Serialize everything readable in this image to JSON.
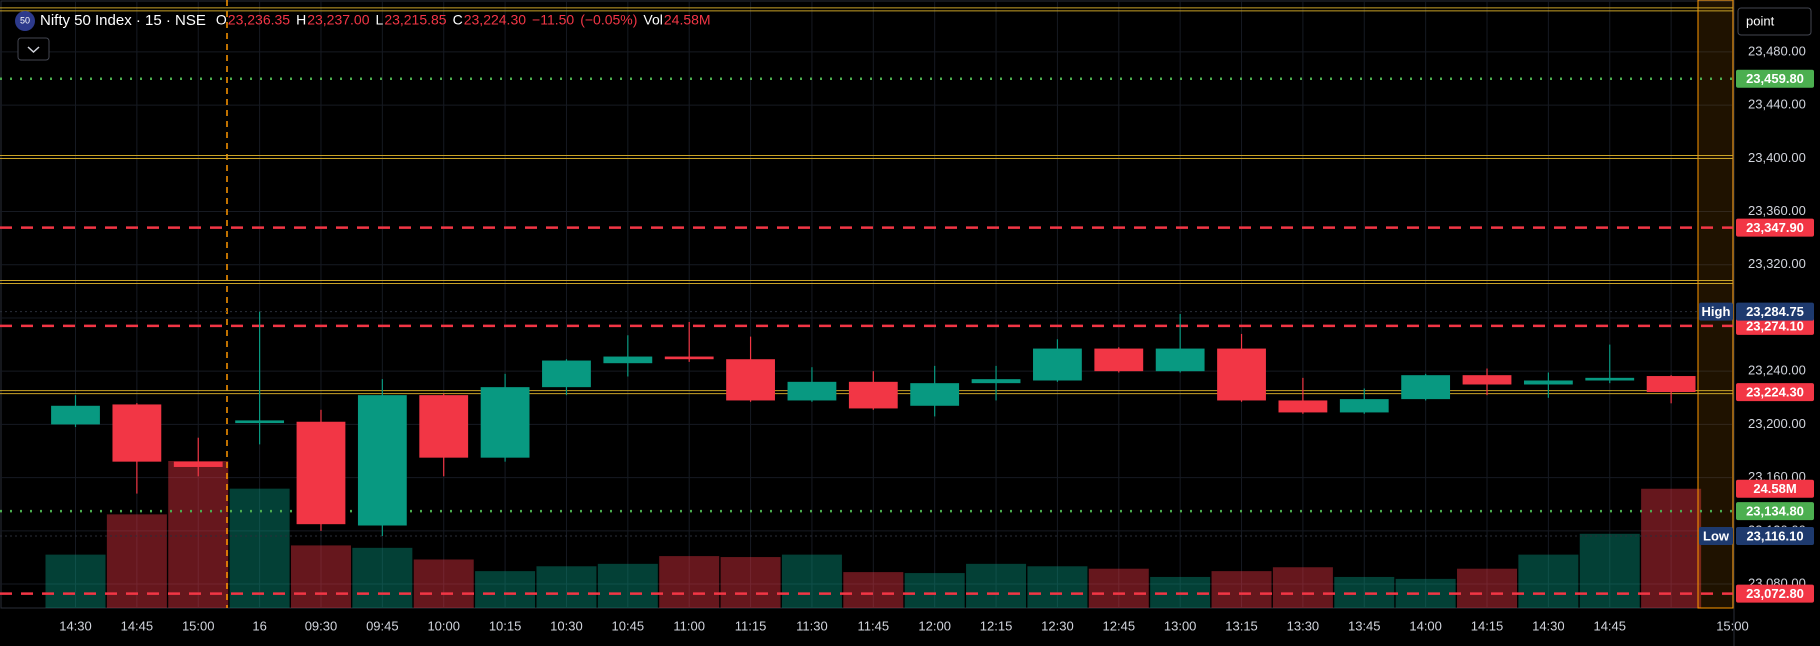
{
  "chart_data": {
    "type": "candlestick",
    "header": {
      "badge": "50",
      "symbol": "Nifty 50 Index · 15 · NSE",
      "items": [
        {
          "key": "O",
          "value": 23236.35,
          "label": "23,236.35"
        },
        {
          "key": "H",
          "value": 23237.0,
          "label": "23,237.00"
        },
        {
          "key": "L",
          "value": 23215.85,
          "label": "23,215.85"
        },
        {
          "key": "C",
          "value": 23224.3,
          "label": "23,224.30"
        },
        {
          "value": -11.5,
          "label": "−11.50"
        },
        {
          "value": -0.05,
          "label": "(−0.05%)"
        },
        {
          "key": "Vol",
          "value": 24.58,
          "label": "24.58M"
        }
      ]
    },
    "unit_selector": "point",
    "categories": [
      "14:30",
      "14:45",
      "15:00",
      "16",
      "09:30",
      "09:45",
      "10:00",
      "10:15",
      "10:30",
      "10:45",
      "11:00",
      "11:15",
      "11:30",
      "11:45",
      "12:00",
      "12:15",
      "12:30",
      "12:45",
      "13:00",
      "13:15",
      "13:30",
      "13:45",
      "14:00",
      "14:15",
      "14:30",
      "14:45",
      null,
      "15:00"
    ],
    "open": [
      23200,
      23215,
      23172,
      23201,
      23202,
      23124,
      23222,
      23175,
      23228,
      23246,
      23251,
      23249,
      23218,
      23232,
      23214,
      23231,
      23233,
      23257,
      23240,
      23257,
      23218,
      23209,
      23219,
      23237,
      23230,
      23233,
      23236.35,
      null
    ],
    "high": [
      23222,
      23216,
      23190,
      23284.75,
      23211,
      23234,
      23223,
      23238,
      23249,
      23267,
      23277,
      23266,
      23243,
      23240,
      23244,
      23244,
      23264,
      23258,
      23283,
      23268,
      23235,
      23227,
      23238,
      23242,
      23239,
      23260,
      23237.0,
      null
    ],
    "low": [
      23198,
      23148,
      23161,
      23185,
      23120,
      23116.1,
      23161,
      23172,
      23222,
      23236,
      23247,
      23217,
      23217,
      23211,
      23206,
      23218,
      23232,
      23239,
      23239,
      23217,
      23208,
      23208,
      23218,
      23222,
      23220,
      23231,
      23215.85,
      null
    ],
    "close": [
      23214,
      23172,
      23168,
      23203,
      23125,
      23222,
      23175,
      23228,
      23248,
      23251,
      23249,
      23218,
      23232,
      23212,
      23231,
      23234,
      23257,
      23240,
      23257,
      23218,
      23209,
      23219,
      23237,
      23230,
      23233,
      23235,
      23224.3,
      null
    ],
    "volume": [
      11.0,
      19.3,
      30.3,
      24.6,
      12.9,
      12.4,
      10.0,
      7.6,
      8.6,
      9.1,
      10.7,
      10.5,
      11.0,
      7.4,
      7.2,
      9.1,
      8.6,
      8.1,
      6.4,
      7.6,
      8.4,
      6.4,
      6.0,
      8.1,
      11.0,
      15.3,
      24.58,
      null
    ],
    "up_color": "#089981",
    "down_color": "#f23645",
    "ylim": [
      23062,
      23519
    ],
    "yticks": [
      {
        "value": 23080,
        "label": "23,080.00"
      },
      {
        "value": 23120,
        "label": "23,120.00"
      },
      {
        "value": 23160,
        "label": "23,160.00"
      },
      {
        "value": 23200,
        "label": "23,200.00"
      },
      {
        "value": 23240,
        "label": "23,240.00"
      },
      {
        "value": 23280,
        "label": "23,280.00"
      },
      {
        "value": 23320,
        "label": "23,320.00"
      },
      {
        "value": 23360,
        "label": "23,360.00"
      },
      {
        "value": 23400,
        "label": "23,400.00"
      },
      {
        "value": 23440,
        "label": "23,440.00"
      },
      {
        "value": 23480,
        "label": "23,480.00"
      }
    ],
    "grid": true,
    "drawing_color": "#c9a227",
    "drawings": [
      23512,
      23401,
      23307
    ],
    "price_lines": [
      {
        "value": 23459.8,
        "label": "23,459.80",
        "color": "#4caf50",
        "style": "dotted"
      },
      {
        "value": 23347.9,
        "label": "23,347.90",
        "color": "#f23645",
        "style": "dashed"
      },
      {
        "value": 23274.1,
        "label": "23,274.10",
        "color": "#f23645",
        "style": "dashed"
      },
      {
        "value": 23224.3,
        "label": "23,224.30",
        "color": "#f23645",
        "style": "double"
      },
      {
        "value": 23134.8,
        "label": "23,134.80",
        "color": "#4caf50",
        "style": "dotted"
      },
      {
        "value": 23072.8,
        "label": "23,072.80",
        "color": "#f23645",
        "style": "dashed"
      }
    ],
    "high_low": [
      {
        "name": "High",
        "value": 23284.75,
        "label": "23,284.75"
      },
      {
        "name": "Low",
        "value": 23116.1,
        "label": "23,116.10"
      }
    ]
  }
}
